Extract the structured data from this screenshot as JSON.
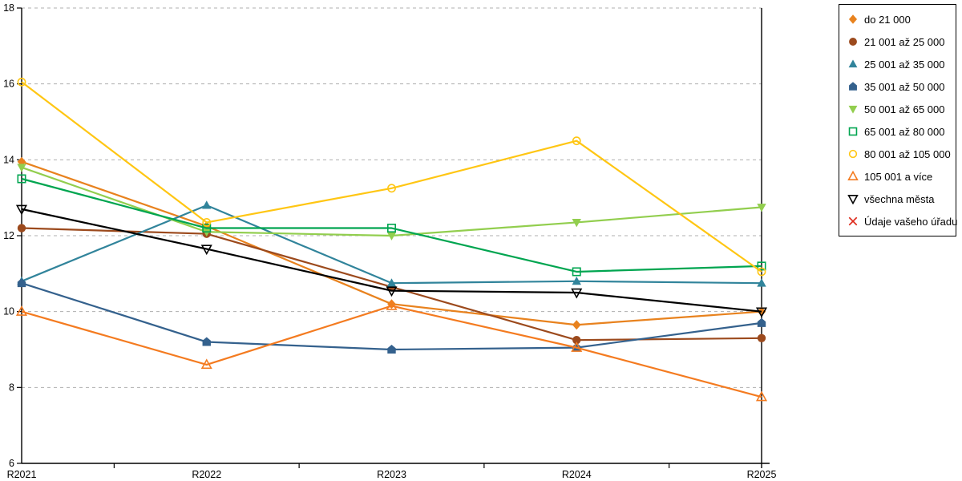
{
  "chart_data": {
    "type": "line",
    "title": "",
    "xlabel": "",
    "ylabel": "",
    "x": [
      "R2021",
      "R2022",
      "R2023",
      "R2024",
      "R2025"
    ],
    "ylim": [
      6,
      18
    ],
    "yticks": [
      6,
      8,
      10,
      12,
      14,
      16,
      18
    ],
    "grid": "horizontal-dashed",
    "legend_position": "right",
    "series": [
      {
        "name": "do 21 000",
        "marker": "diamond",
        "style": "filled",
        "color": "#E8821E",
        "values": [
          13.95,
          12.25,
          10.2,
          9.65,
          10.0
        ]
      },
      {
        "name": "21 001 až 25 000",
        "marker": "circle",
        "style": "filled",
        "color": "#9C4A1D",
        "values": [
          12.2,
          12.05,
          10.65,
          9.25,
          9.3
        ]
      },
      {
        "name": "25 001 až 35 000",
        "marker": "triangle-up",
        "style": "filled",
        "color": "#31849B",
        "values": [
          10.8,
          12.8,
          10.75,
          10.8,
          10.75
        ]
      },
      {
        "name": "35 001 až 50 000",
        "marker": "pentagon",
        "style": "filled",
        "color": "#34618D",
        "values": [
          10.75,
          9.2,
          9.0,
          9.05,
          9.7
        ]
      },
      {
        "name": "50 001 až 65 000",
        "marker": "triangle-down",
        "style": "filled",
        "color": "#92CE4E",
        "values": [
          13.8,
          12.1,
          12.0,
          12.35,
          12.75
        ]
      },
      {
        "name": "65 001 až 80 000",
        "marker": "square",
        "style": "outline",
        "color": "#00A550",
        "values": [
          13.5,
          12.2,
          12.2,
          11.05,
          11.2
        ]
      },
      {
        "name": "80 001 až 105 000",
        "marker": "circle",
        "style": "outline",
        "color": "#FFC613",
        "values": [
          16.05,
          12.35,
          13.25,
          14.5,
          11.05
        ]
      },
      {
        "name": "105 001 a více",
        "marker": "triangle-up",
        "style": "outline",
        "color": "#F47B20",
        "values": [
          10.0,
          8.6,
          10.15,
          9.05,
          7.75
        ]
      },
      {
        "name": "všechna města",
        "marker": "triangle-down",
        "style": "outline",
        "color": "#000000",
        "values": [
          12.7,
          11.65,
          10.55,
          10.5,
          10.0
        ]
      },
      {
        "name": "Údaje vašeho úřadu",
        "marker": "x",
        "style": "outline",
        "color": "#DE2A1B",
        "values": []
      }
    ]
  },
  "theme": {
    "background": "#FFFFFF",
    "axis_color": "#000000",
    "grid_color": "#AFAFAF",
    "tick_label_color": "#000000",
    "legend_border_color": "#000000"
  }
}
